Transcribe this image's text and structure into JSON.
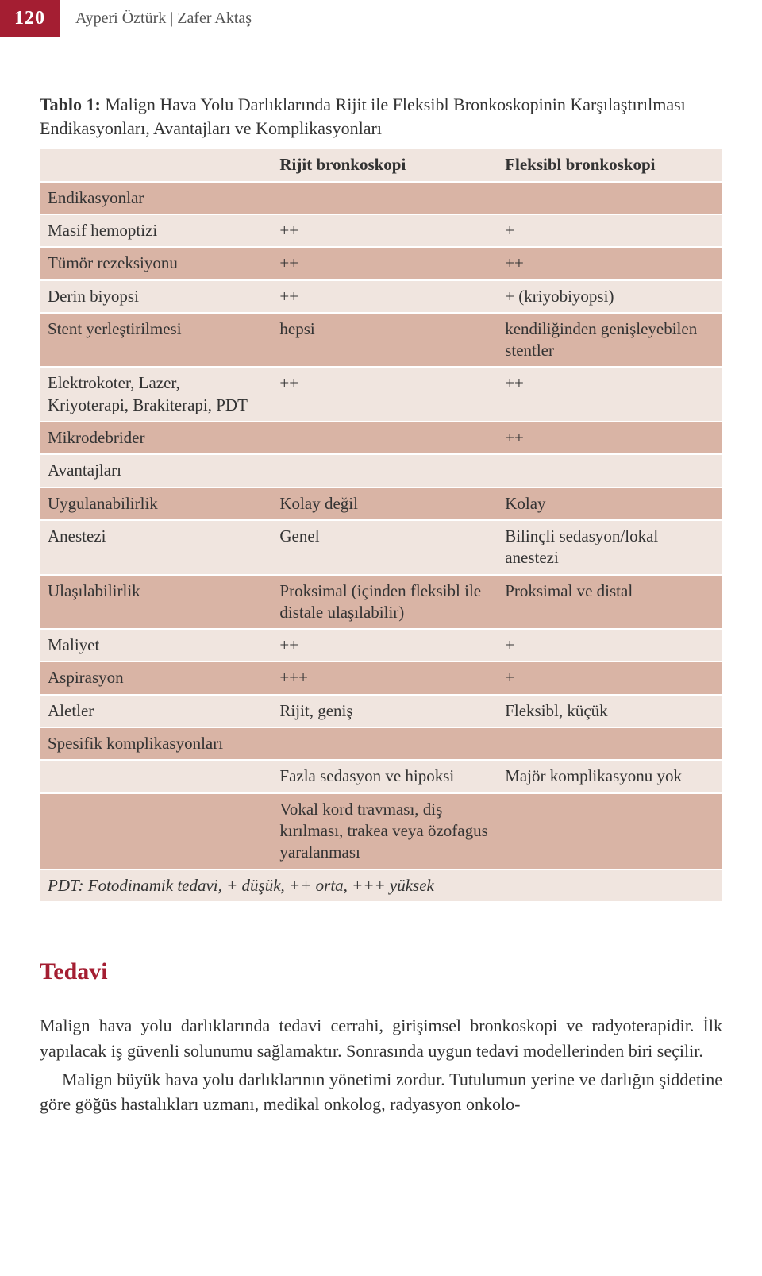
{
  "header": {
    "page_number": "120",
    "authors": "Ayperi Öztürk  |  Zafer Aktaş"
  },
  "table": {
    "caption_label": "Tablo 1:",
    "caption_text": " Malign Hava Yolu Darlıklarında Rijit ile Fleksibl Bronkoskopinin Karşılaştırılması Endikasyonları, Avantajları ve Komplikasyonları",
    "col_headers": [
      "",
      "Rijit bronkoskopi",
      "Fleksibl bronkoskopi"
    ],
    "sections": [
      {
        "title": "Endikasyonlar",
        "rows": [
          {
            "label": "Masif hemoptizi",
            "c1": "++",
            "c2": "+"
          },
          {
            "label": "Tümör rezeksiyonu",
            "c1": "++",
            "c2": "++"
          },
          {
            "label": "Derin biyopsi",
            "c1": "++",
            "c2": "+ (kriyobiyopsi)"
          },
          {
            "label": "Stent yerleştirilmesi",
            "c1": "hepsi",
            "c2": "kendiliğinden genişleyebilen stentler"
          },
          {
            "label": "Elektrokoter, Lazer, Kriyoterapi, Brakiterapi, PDT",
            "c1": "++",
            "c2": "++"
          },
          {
            "label": "Mikrodebrider",
            "c1": "",
            "c2": "++"
          }
        ]
      },
      {
        "title": "Avantajları",
        "rows": [
          {
            "label": "Uygulanabilirlik",
            "c1": "Kolay değil",
            "c2": "Kolay"
          },
          {
            "label": "Anestezi",
            "c1": "Genel",
            "c2": "Bilinçli sedasyon/lokal anestezi"
          },
          {
            "label": "Ulaşılabilirlik",
            "c1": "Proksimal (içinden fleksibl ile distale ulaşılabilir)",
            "c2": "Proksimal ve distal"
          },
          {
            "label": "Maliyet",
            "c1": "++",
            "c2": "+"
          },
          {
            "label": "Aspirasyon",
            "c1": "+++",
            "c2": "+"
          },
          {
            "label": "Aletler",
            "c1": "Rijit, geniş",
            "c2": "Fleksibl, küçük"
          }
        ]
      },
      {
        "title": "Spesifik komplikasyonları",
        "rows": [
          {
            "label": "",
            "c1": "Fazla sedasyon ve hipoksi",
            "c2": "Majör komplikasyonu yok"
          },
          {
            "label": "",
            "c1": "Vokal kord travması, diş kırılması, trakea veya özofagus yaralanması",
            "c2": ""
          }
        ]
      }
    ],
    "footnote": "PDT: Fotodinamik tedavi,   + düşük,   ++ orta,   +++ yüksek"
  },
  "section_heading": "Tedavi",
  "paragraphs": {
    "p1": "Malign hava yolu darlıklarında tedavi cerrahi, girişimsel bronkoskopi ve radyoterapidir. İlk yapılacak iş güvenli solunumu sağlamaktır. Sonrasında uygun tedavi modellerinden biri seçilir.",
    "p2": "Malign büyük hava yolu darlıklarının yönetimi zordur. Tutulumun yerine ve darlığın şiddetine göre göğüs hastalıkları uzmanı, medikal onkolog, radyasyon onkolo-"
  },
  "colors": {
    "accent": "#a41e32",
    "row_light": "#f0e5df",
    "row_dark": "#d9b4a5",
    "text": "#333333"
  }
}
